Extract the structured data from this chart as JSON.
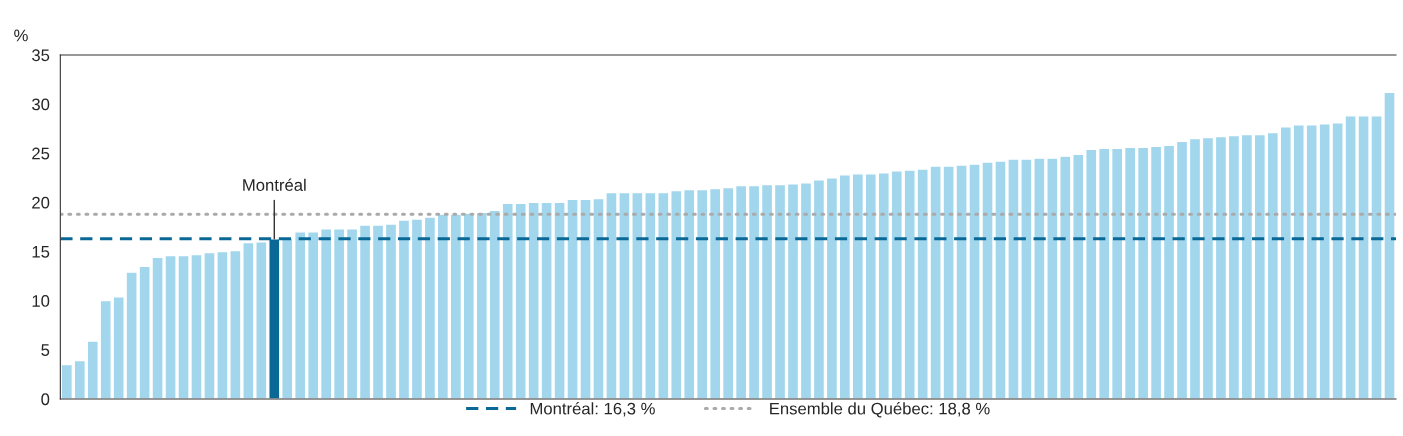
{
  "chart_data": {
    "type": "bar",
    "ylabel": "%",
    "categories": [
      null,
      null,
      null,
      null,
      null,
      null,
      null,
      null,
      null,
      null,
      null,
      null,
      null,
      null,
      null,
      null,
      null,
      null,
      null,
      null,
      null,
      null,
      null,
      null,
      null,
      null,
      null,
      null,
      null,
      null,
      null,
      null,
      null,
      null,
      null,
      null,
      null,
      null,
      null,
      null,
      null,
      null,
      null,
      null,
      null,
      null,
      null,
      null,
      null,
      null,
      null,
      null,
      null,
      null,
      null,
      null,
      null,
      null,
      null,
      null,
      null,
      null,
      null,
      null,
      null,
      null,
      null,
      null,
      null,
      null,
      null,
      null,
      null,
      null,
      null,
      null,
      null,
      null,
      null,
      null,
      null,
      null,
      null,
      null,
      null,
      null,
      null,
      null,
      null,
      null,
      null,
      null,
      null,
      null,
      null,
      null,
      null,
      null,
      null,
      null,
      null,
      null,
      null
    ],
    "values": [
      3.5,
      3.9,
      5.9,
      10.0,
      10.4,
      12.9,
      13.5,
      14.4,
      14.6,
      14.6,
      14.7,
      14.9,
      15.0,
      15.1,
      15.9,
      16.0,
      16.3,
      16.4,
      17.0,
      17.0,
      17.3,
      17.3,
      17.3,
      17.7,
      17.7,
      17.8,
      18.2,
      18.3,
      18.5,
      18.8,
      18.8,
      18.9,
      19.0,
      19.2,
      19.9,
      19.9,
      20.0,
      20.0,
      20.0,
      20.3,
      20.3,
      20.4,
      21.0,
      21.0,
      21.0,
      21.0,
      21.0,
      21.2,
      21.3,
      21.3,
      21.4,
      21.5,
      21.7,
      21.7,
      21.8,
      21.8,
      21.9,
      22.0,
      22.3,
      22.5,
      22.8,
      22.9,
      22.9,
      23.0,
      23.2,
      23.3,
      23.4,
      23.7,
      23.7,
      23.8,
      23.9,
      24.1,
      24.2,
      24.4,
      24.4,
      24.5,
      24.5,
      24.7,
      24.9,
      25.4,
      25.5,
      25.5,
      25.6,
      25.6,
      25.7,
      25.8,
      26.2,
      26.5,
      26.6,
      26.7,
      26.8,
      26.9,
      26.9,
      27.1,
      27.7,
      27.9,
      27.9,
      28.0,
      28.1,
      28.8,
      28.8,
      28.8,
      31.2
    ],
    "colors": [
      "#a1d6ec",
      "#a1d6ec",
      "#a1d6ec",
      "#a1d6ec",
      "#a1d6ec",
      "#a1d6ec",
      "#a1d6ec",
      "#a1d6ec",
      "#a1d6ec",
      "#a1d6ec",
      "#a1d6ec",
      "#a1d6ec",
      "#a1d6ec",
      "#a1d6ec",
      "#a1d6ec",
      "#a1d6ec",
      "#0a6896",
      "#a1d6ec",
      "#a1d6ec",
      "#a1d6ec",
      "#a1d6ec",
      "#a1d6ec",
      "#a1d6ec",
      "#a1d6ec",
      "#a1d6ec",
      "#a1d6ec",
      "#a1d6ec",
      "#a1d6ec",
      "#a1d6ec",
      "#a1d6ec",
      "#a1d6ec",
      "#a1d6ec",
      "#a1d6ec",
      "#a1d6ec",
      "#a1d6ec",
      "#a1d6ec",
      "#a1d6ec",
      "#a1d6ec",
      "#a1d6ec",
      "#a1d6ec",
      "#a1d6ec",
      "#a1d6ec",
      "#a1d6ec",
      "#a1d6ec",
      "#a1d6ec",
      "#a1d6ec",
      "#a1d6ec",
      "#a1d6ec",
      "#a1d6ec",
      "#a1d6ec",
      "#a1d6ec",
      "#a1d6ec",
      "#a1d6ec",
      "#a1d6ec",
      "#a1d6ec",
      "#a1d6ec",
      "#a1d6ec",
      "#a1d6ec",
      "#a1d6ec",
      "#a1d6ec",
      "#a1d6ec",
      "#a1d6ec",
      "#a1d6ec",
      "#a1d6ec",
      "#a1d6ec",
      "#a1d6ec",
      "#a1d6ec",
      "#a1d6ec",
      "#a1d6ec",
      "#a1d6ec",
      "#a1d6ec",
      "#a1d6ec",
      "#a1d6ec",
      "#a1d6ec",
      "#a1d6ec",
      "#a1d6ec",
      "#a1d6ec",
      "#a1d6ec",
      "#a1d6ec",
      "#a1d6ec",
      "#a1d6ec",
      "#a1d6ec",
      "#a1d6ec",
      "#a1d6ec",
      "#a1d6ec",
      "#a1d6ec",
      "#a1d6ec",
      "#a1d6ec",
      "#a1d6ec",
      "#a1d6ec",
      "#a1d6ec",
      "#a1d6ec",
      "#a1d6ec",
      "#a1d6ec",
      "#a1d6ec",
      "#a1d6ec",
      "#a1d6ec",
      "#a1d6ec",
      "#a1d6ec",
      "#a1d6ec",
      "#a1d6ec",
      "#a1d6ec",
      "#a1d6ec"
    ],
    "ylim": [
      0,
      35
    ],
    "yticks": [
      0,
      5,
      10,
      15,
      20,
      25,
      30,
      35
    ],
    "grid": false,
    "legend": "bottom",
    "annotations": [
      {
        "text": "Montréal",
        "y": 16.3
      }
    ],
    "ref_lines": [
      {
        "axis": "y",
        "value": 16.3,
        "label": "Montréal: 16,3 %",
        "color": "#0a6896",
        "line_style": "dashed"
      },
      {
        "axis": "y",
        "value": 18.8,
        "label": "Ensemble du Québec: 18,8 %",
        "color": "#aaaaaa",
        "line_style": "dotted"
      }
    ]
  }
}
